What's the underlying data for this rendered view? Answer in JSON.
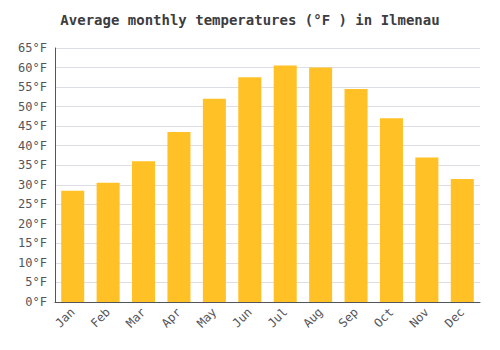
{
  "chart_data": {
    "type": "bar",
    "title": "Average monthly temperatures (°F ) in Ilmenau",
    "categories": [
      "Jan",
      "Feb",
      "Mar",
      "Apr",
      "May",
      "Jun",
      "Jul",
      "Aug",
      "Sep",
      "Oct",
      "Nov",
      "Dec"
    ],
    "values": [
      28.5,
      30.5,
      36.0,
      43.5,
      52.0,
      57.5,
      60.5,
      60.0,
      54.5,
      47.0,
      37.0,
      31.5
    ],
    "color": "#FFC125",
    "ylim": [
      0,
      65
    ],
    "yticks": [
      {
        "value": 0,
        "label": "0°F"
      },
      {
        "value": 5,
        "label": "5°F"
      },
      {
        "value": 10,
        "label": "10°F"
      },
      {
        "value": 15,
        "label": "15°F"
      },
      {
        "value": 20,
        "label": "20°F"
      },
      {
        "value": 25,
        "label": "25°F"
      },
      {
        "value": 30,
        "label": "30°F"
      },
      {
        "value": 35,
        "label": "35°F"
      },
      {
        "value": 40,
        "label": "40°F"
      },
      {
        "value": 45,
        "label": "45°F"
      },
      {
        "value": 50,
        "label": "50°F"
      },
      {
        "value": 55,
        "label": "55°F"
      },
      {
        "value": 60,
        "label": "60°F"
      },
      {
        "value": 65,
        "label": "65°F"
      }
    ],
    "grid": true
  }
}
